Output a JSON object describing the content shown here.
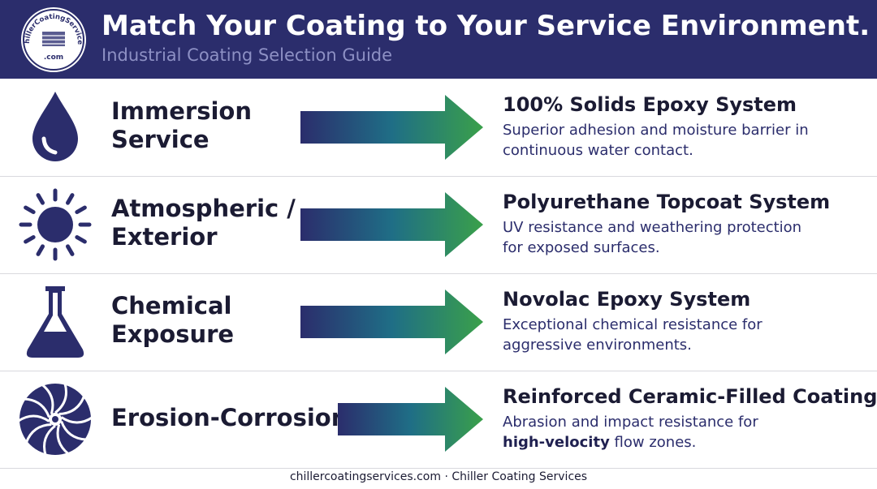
{
  "header": {
    "logo_text": "ChillerCoatingServices",
    "logo_suffix": ".com",
    "title": "Match Your Coating to Your Service Environment.",
    "subtitle": "Industrial Coating Selection Guide"
  },
  "rows": [
    {
      "icon": "drop",
      "environment": [
        "Immersion",
        "Service"
      ],
      "coating": "100% Solids Epoxy System",
      "description": [
        "Superior adhesion and moisture barrier in",
        "continuous water contact."
      ]
    },
    {
      "icon": "sun",
      "environment": [
        "Atmospheric /",
        "Exterior"
      ],
      "coating": "Polyurethane Topcoat System",
      "description": [
        "UV resistance and weathering protection",
        "for exposed surfaces."
      ]
    },
    {
      "icon": "flask",
      "environment": [
        "Chemical",
        "Exposure"
      ],
      "coating": "Novolac Epoxy System",
      "description": [
        "Exceptional chemical resistance for",
        "aggressive environments."
      ]
    },
    {
      "icon": "fan",
      "environment": [
        "Erosion-Corrosion"
      ],
      "coating": "Reinforced Ceramic-Filled Coating",
      "description": [
        "Abrasion and impact resistance for",
        [
          {
            "text": "high-velocity",
            "bold": true
          },
          {
            "text": " flow zones."
          }
        ]
      ]
    }
  ],
  "footer": "chillercoatingservices.com · Chiller Coating Services"
}
